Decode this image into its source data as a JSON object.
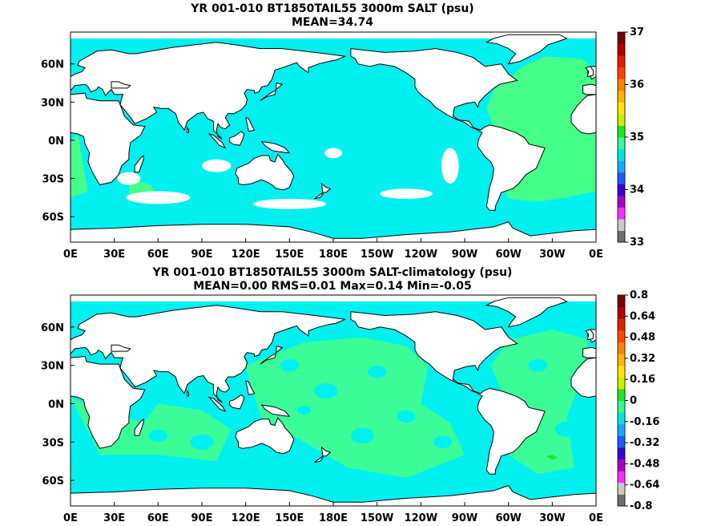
{
  "chart_data": [
    {
      "type": "heatmap",
      "title": "YR 001-010 BT1850TAIL55 3000m SALT (psu)",
      "subtitle": "MEAN=34.74",
      "x_ticks": [
        "0E",
        "30E",
        "60E",
        "90E",
        "120E",
        "150E",
        "180E",
        "150W",
        "120W",
        "90W",
        "60W",
        "30W",
        "0E"
      ],
      "y_ticks": [
        "60N",
        "30N",
        "0N",
        "30S",
        "60S"
      ],
      "y_tick_lat": [
        60,
        30,
        0,
        -30,
        -60
      ],
      "lat_range": [
        -80,
        85
      ],
      "colorbar": {
        "labels": [
          "37",
          "36",
          "35",
          "34",
          "33"
        ],
        "label_values": [
          37,
          36,
          35,
          34,
          33
        ],
        "range": [
          33,
          37
        ],
        "colors": [
          "#6e6e6e",
          "#c9c9c9",
          "#ff2bff",
          "#a800c8",
          "#3c00d8",
          "#1e5cff",
          "#19a8ff",
          "#00e6e6",
          "#3cf58c",
          "#1ee61e",
          "#c8f000",
          "#ffe600",
          "#ffb400",
          "#ff8200",
          "#ff4600",
          "#e61e00",
          "#b40000",
          "#780000"
        ]
      },
      "field_colors": {
        "dominant": "#00f0f0",
        "atlantic": "#44ff88"
      }
    },
    {
      "type": "heatmap",
      "title": "YR 001-010 BT1850TAIL55 3000m SALT-climatology (psu)",
      "subtitle": "MEAN=0.00   RMS=0.01   Max=0.14   Min=-0.05",
      "x_ticks": [
        "0E",
        "30E",
        "60E",
        "90E",
        "120E",
        "150E",
        "180E",
        "150W",
        "120W",
        "90W",
        "60W",
        "30W",
        "0E"
      ],
      "y_ticks": [
        "60N",
        "30N",
        "0N",
        "30S",
        "60S"
      ],
      "y_tick_lat": [
        60,
        30,
        0,
        -30,
        -60
      ],
      "lat_range": [
        -80,
        85
      ],
      "colorbar": {
        "labels": [
          "0.8",
          "0.64",
          "0.48",
          "0.32",
          "0.16",
          "0",
          "-0.16",
          "-0.32",
          "-0.48",
          "-0.64",
          "-0.8"
        ],
        "label_values": [
          0.8,
          0.64,
          0.48,
          0.32,
          0.16,
          0,
          -0.16,
          -0.32,
          -0.48,
          -0.64,
          -0.8
        ],
        "range": [
          -0.8,
          0.8
        ],
        "colors": [
          "#6e6e6e",
          "#c9c9c9",
          "#ff2bff",
          "#a800c8",
          "#3c00d8",
          "#1e5cff",
          "#19a8ff",
          "#00e6e6",
          "#3cf58c",
          "#1ee61e",
          "#c8f000",
          "#ffe600",
          "#ffb400",
          "#ff8200",
          "#ff4600",
          "#e61e00",
          "#b40000",
          "#780000"
        ]
      },
      "field_colors": {
        "near_zero": "#00f0f0",
        "positive": "#44ff88",
        "strong_positive": "#22dd22"
      }
    }
  ]
}
